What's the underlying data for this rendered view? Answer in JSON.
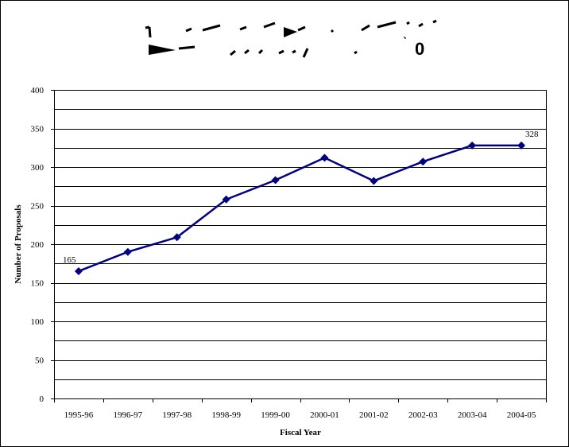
{
  "chart_data": {
    "type": "line",
    "title": "",
    "xlabel": "Fiscal Year",
    "ylabel": "Number of Proposals",
    "categories": [
      "1995-96",
      "1996-97",
      "1997-98",
      "1998-99",
      "1999-00",
      "2000-01",
      "2001-02",
      "2002-03",
      "2003-04",
      "2004-05"
    ],
    "series": [
      {
        "values": [
          165,
          190,
          209,
          258,
          283,
          312,
          282,
          307,
          328,
          328
        ]
      }
    ],
    "ylim": [
      0,
      400
    ],
    "y_ticks": [
      "0",
      "50",
      "100",
      "150",
      "200",
      "250",
      "300",
      "350",
      "400"
    ],
    "grid": true,
    "point_labels": [
      {
        "index": 0,
        "text": "165"
      },
      {
        "index": 9,
        "text": "328"
      }
    ],
    "colors": {
      "series": "#000080",
      "grid": "#000000"
    }
  }
}
